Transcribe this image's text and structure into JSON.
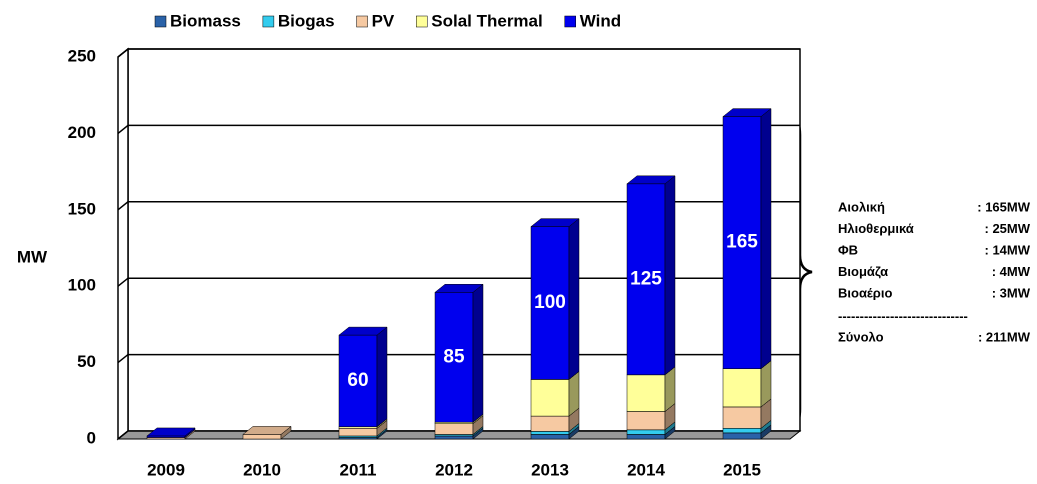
{
  "chart_data": {
    "type": "bar3d_stacked",
    "ylabel": "MW",
    "categories": [
      "2009",
      "2010",
      "2011",
      "2012",
      "2013",
      "2014",
      "2015"
    ],
    "series": [
      {
        "name": "Biomass",
        "color": "#2a62a8",
        "values": [
          0,
          0,
          1,
          2,
          3,
          3,
          4
        ]
      },
      {
        "name": "Biogas",
        "color": "#33ccee",
        "values": [
          0,
          0,
          1,
          1,
          2,
          3,
          3
        ]
      },
      {
        "name": "PV",
        "color": "#f6c9a2",
        "values": [
          1,
          3,
          5,
          7,
          10,
          12,
          14
        ]
      },
      {
        "name": "Solal Thermal",
        "color": "#ffff99",
        "values": [
          0,
          0,
          1,
          1,
          24,
          24,
          25
        ]
      },
      {
        "name": "Wind",
        "color": "#0000ee",
        "values": [
          1,
          0,
          60,
          85,
          100,
          125,
          165
        ],
        "show_labels": true
      }
    ],
    "ylim": [
      0,
      250
    ],
    "yticks": [
      0,
      50,
      100,
      150,
      200,
      250
    ],
    "grid": true,
    "legend": "top",
    "annotation": {
      "rows": [
        [
          "Αιολική",
          ": 165MW"
        ],
        [
          "Ηλιοθερμικά",
          ": 25MW"
        ],
        [
          "ΦΒ",
          ": 14MW"
        ],
        [
          "Βιομάζα",
          ": 4MW"
        ],
        [
          "Βιοαέριο",
          ": 3MW"
        ]
      ],
      "separator": "------------------------------",
      "total": [
        "Σύνολο",
        ": 211MW"
      ]
    }
  }
}
